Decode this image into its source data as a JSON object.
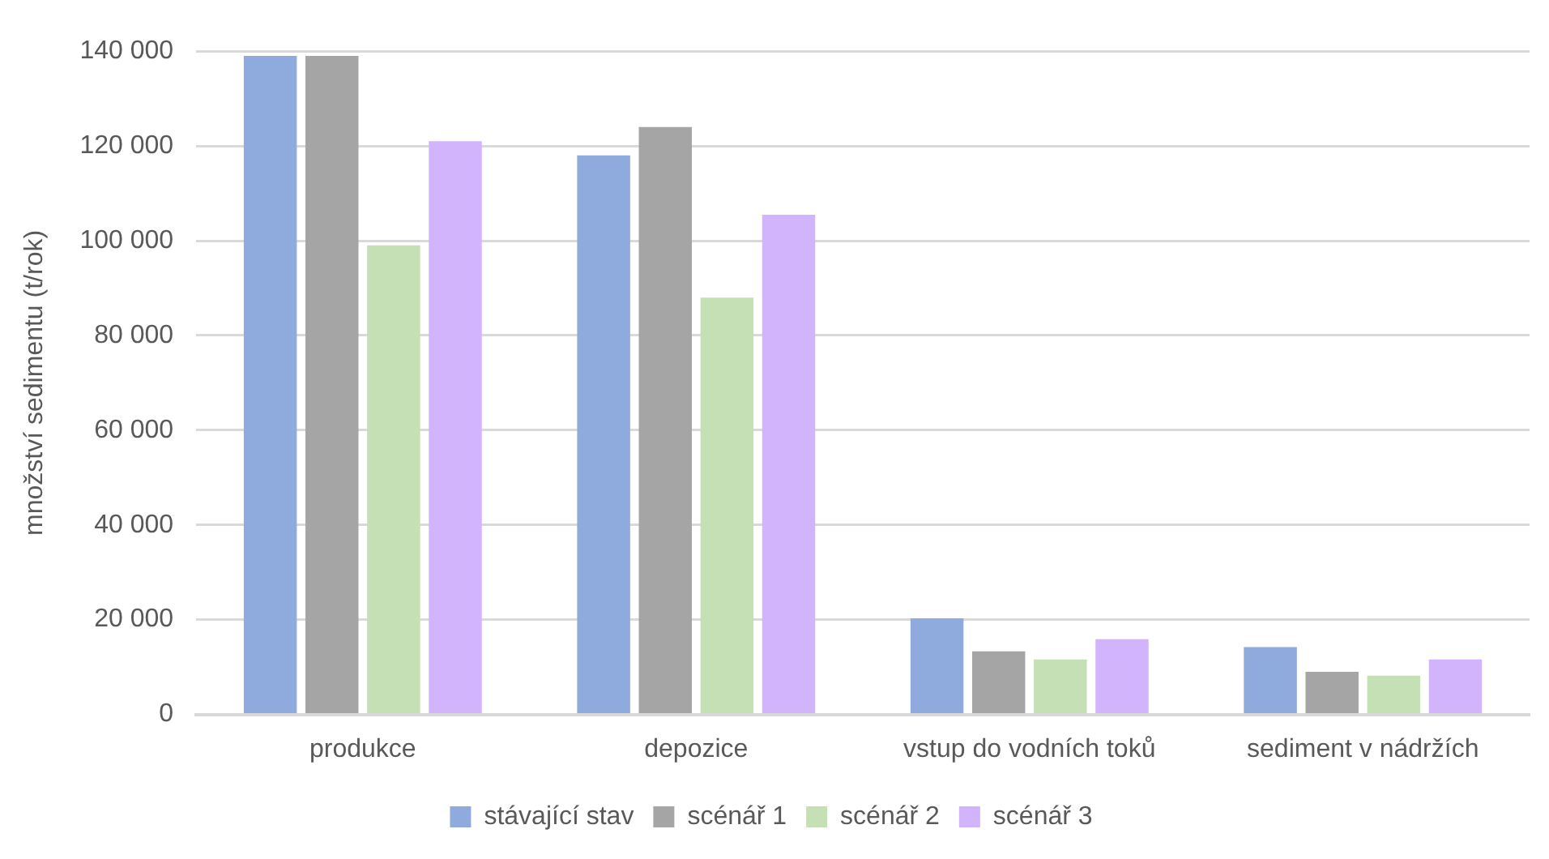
{
  "chart_data": {
    "type": "bar",
    "ylabel": "množství sedimentu (t/rok)",
    "categories": [
      "produkce",
      "depozice",
      "vstup do vodních toků",
      "sediment v nádržích"
    ],
    "series": [
      {
        "name": "stávající stav",
        "color": "#8faadc",
        "values": [
          139000,
          118000,
          20300,
          14200
        ]
      },
      {
        "name": "scénář 1",
        "color": "#a5a5a5",
        "values": [
          139000,
          124000,
          13300,
          9000
        ]
      },
      {
        "name": "scénář 2",
        "color": "#c5e0b4",
        "values": [
          99000,
          88000,
          11600,
          8200
        ]
      },
      {
        "name": "scénář 3",
        "color": "#d2b4fc",
        "values": [
          121000,
          105500,
          15900,
          11600
        ]
      }
    ],
    "ylim": [
      0,
      140000
    ],
    "yticks": [
      0,
      {
        "value": 20000,
        "label": "20 000"
      },
      {
        "value": 40000,
        "label": "40 000"
      },
      {
        "value": 60000,
        "label": "60 000"
      },
      {
        "value": 80000,
        "label": "80 000"
      },
      {
        "value": 100000,
        "label": "100 000"
      },
      {
        "value": 120000,
        "label": "120 000"
      },
      {
        "value": 140000,
        "label": "140 000"
      }
    ],
    "grid": "y",
    "legend": "bottom"
  }
}
